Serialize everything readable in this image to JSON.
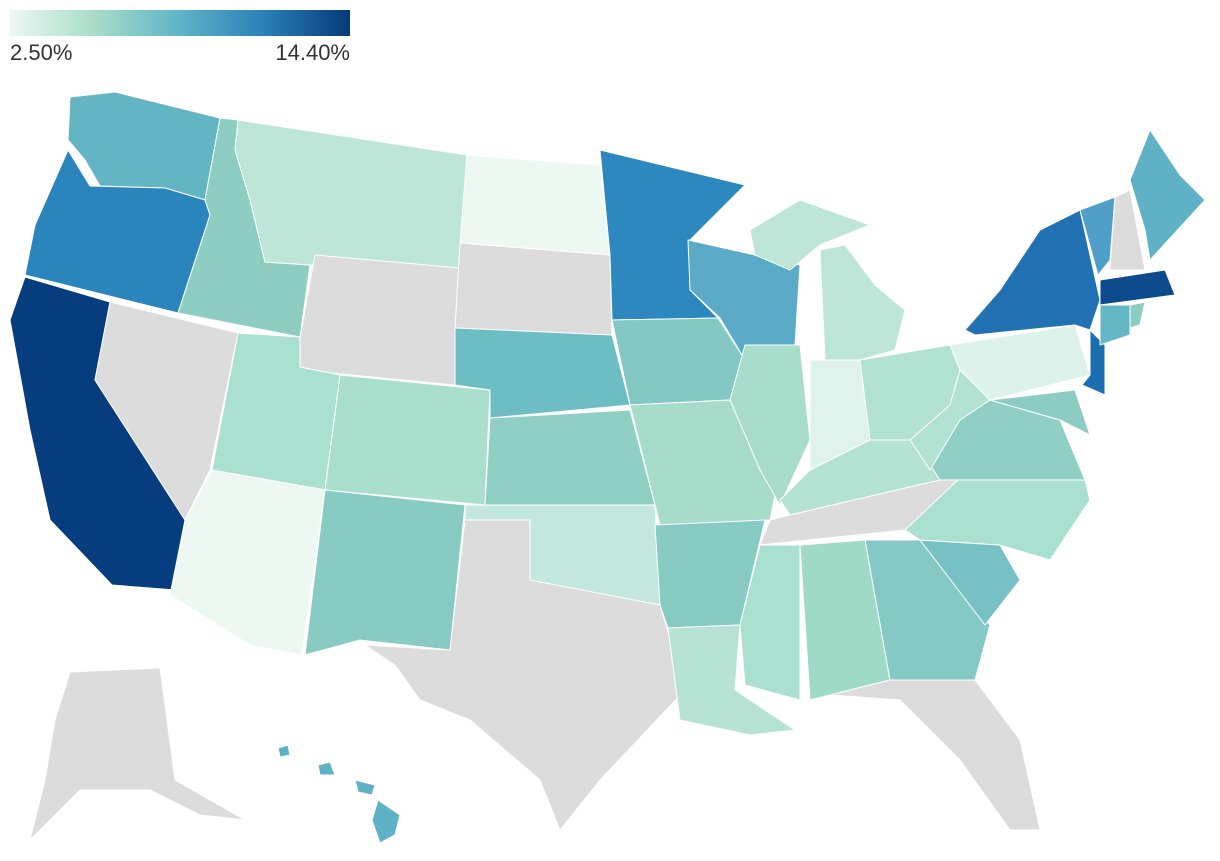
{
  "chart_data": {
    "type": "choropleth",
    "colorscale": [
      "#edf8f5",
      "#a8dcc8",
      "#5fb4c7",
      "#2a7fb8",
      "#063a7a"
    ],
    "colorbar_ticks": [
      {
        "value": 2.5,
        "label": "2.50%"
      },
      {
        "value": 14.4,
        "label": "14.40%"
      }
    ]
  }
}
